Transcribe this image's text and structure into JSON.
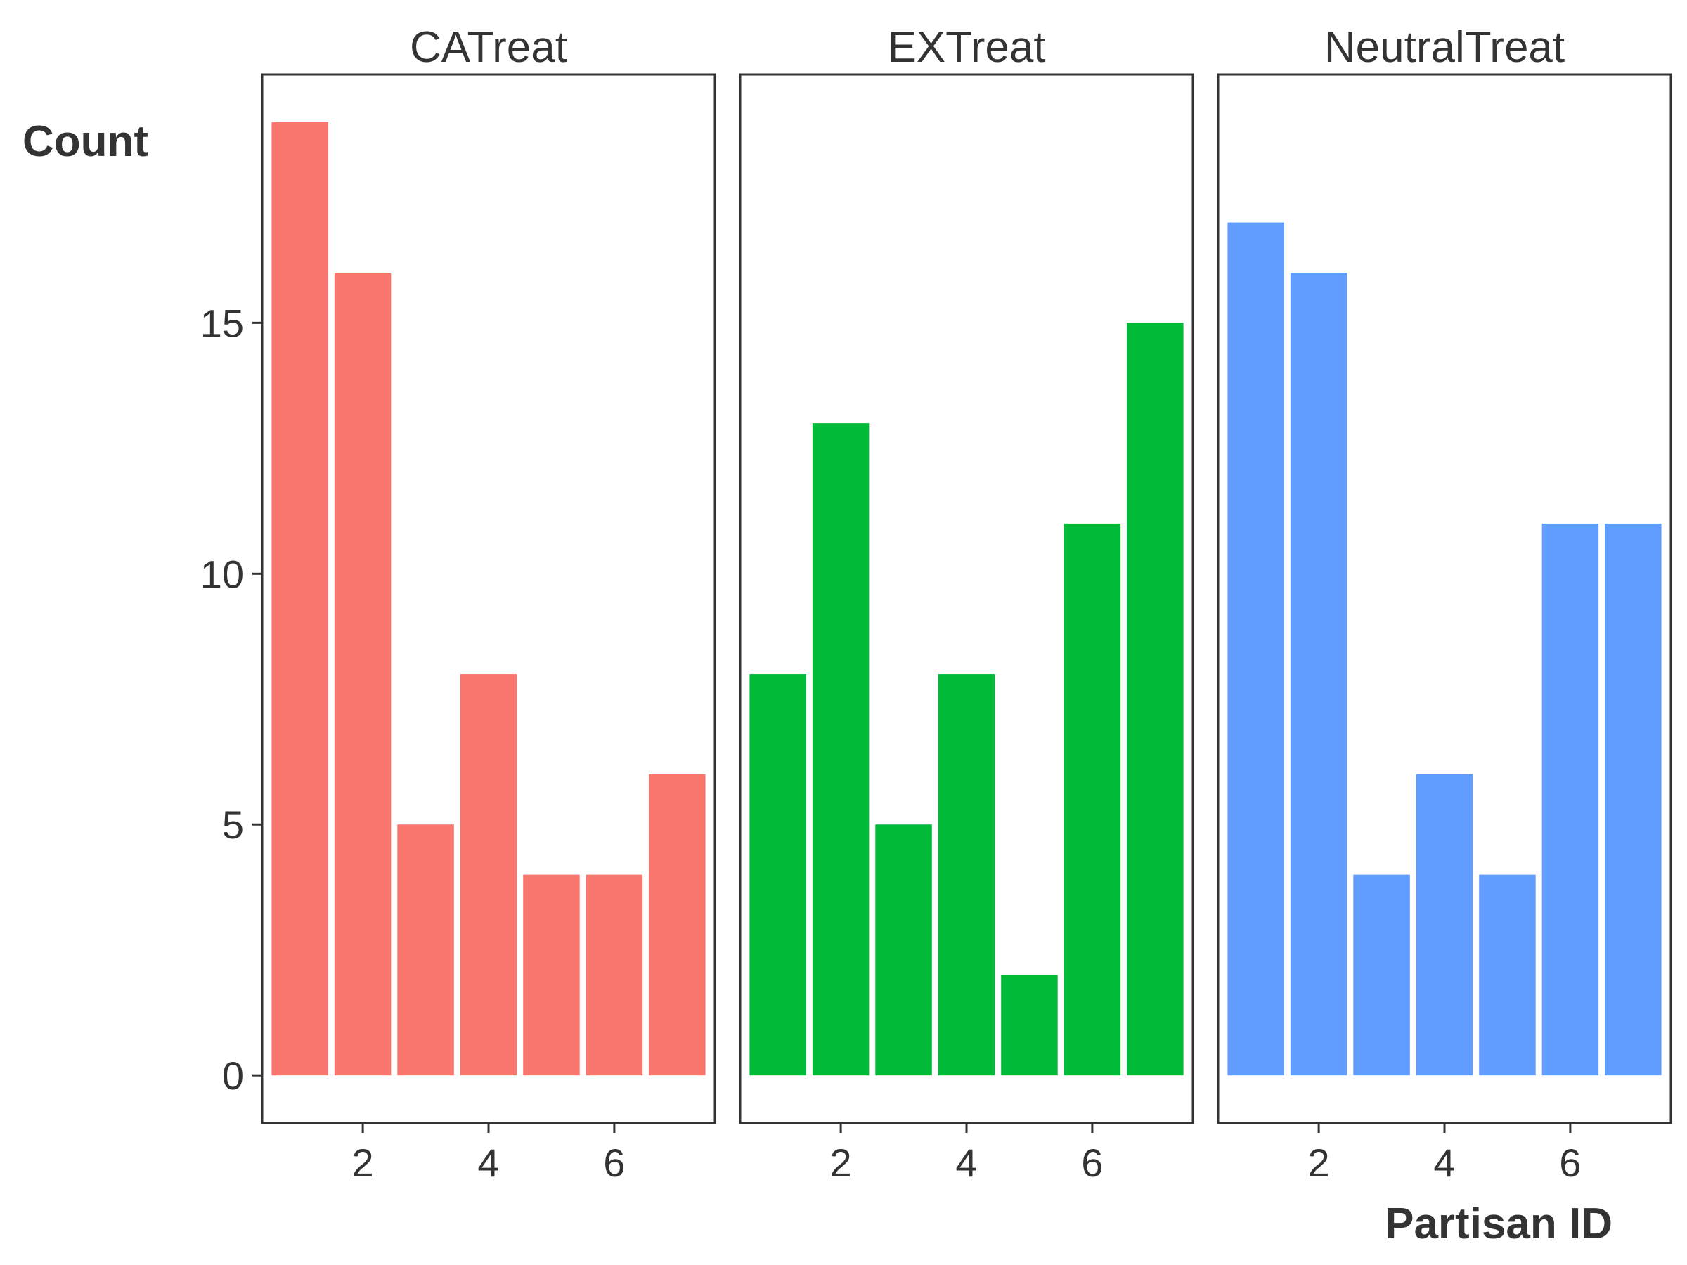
{
  "chart_data": {
    "type": "bar",
    "facets": [
      {
        "name": "CATreat",
        "color": "#F8766D",
        "x": [
          1,
          2,
          3,
          4,
          5,
          6,
          7
        ],
        "values": [
          19,
          16,
          5,
          8,
          4,
          4,
          6
        ]
      },
      {
        "name": "EXTreat",
        "color": "#00BA38",
        "x": [
          1,
          2,
          3,
          4,
          5,
          6,
          7
        ],
        "values": [
          8,
          13,
          5,
          8,
          2,
          11,
          15
        ]
      },
      {
        "name": "NeutralTreat",
        "color": "#619CFF",
        "x": [
          1,
          2,
          3,
          4,
          5,
          6,
          7
        ],
        "values": [
          17,
          16,
          4,
          6,
          4,
          11,
          11
        ]
      }
    ],
    "xlabel": "Partisan ID",
    "ylabel": "Count",
    "x_ticks": [
      2,
      4,
      6
    ],
    "y_ticks": [
      0,
      5,
      10,
      15
    ],
    "xlim": [
      0.4,
      7.6
    ],
    "ylim": [
      -0.95,
      19.95
    ],
    "grid": false,
    "legend": "none"
  }
}
